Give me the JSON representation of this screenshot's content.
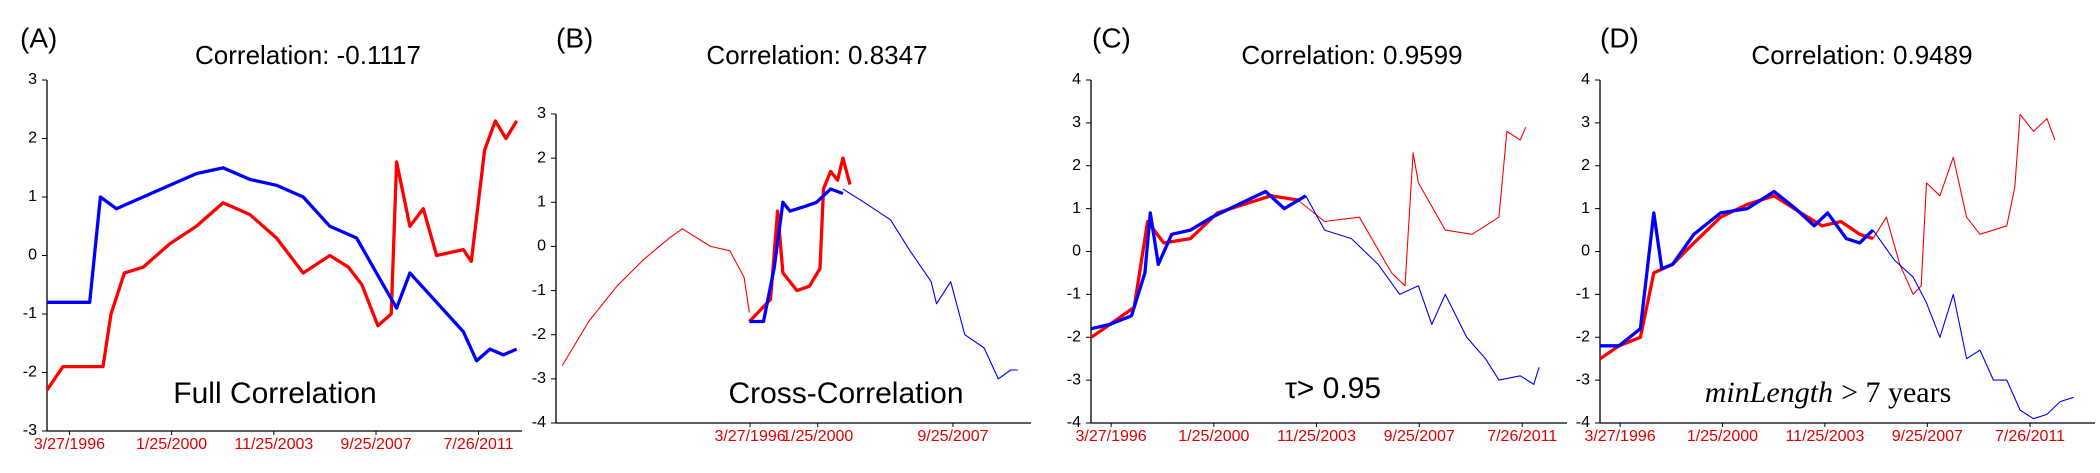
{
  "chart_data": [
    {
      "type": "line",
      "panel": "(A)",
      "title": "Correlation: -0.1117",
      "annotation": [
        {
          "text": "Full Correlation"
        }
      ],
      "xlim": [
        1995.4,
        2013.2
      ],
      "ylim": [
        -3,
        3
      ],
      "yticks": [
        -3,
        -2,
        -1,
        0,
        1,
        2,
        3
      ],
      "xticks": [
        {
          "value": 1996.24,
          "label": "3/27/1996"
        },
        {
          "value": 2000.07,
          "label": "1/25/2000"
        },
        {
          "value": 2003.9,
          "label": "11/25/2003"
        },
        {
          "value": 2007.73,
          "label": "9/25/2007"
        },
        {
          "value": 2011.57,
          "label": "7/26/2011"
        }
      ],
      "series": [
        {
          "color": "#ff0000",
          "width": 3,
          "x": [
            1995.4,
            1996,
            1997.5,
            1997.8,
            1998.3,
            1999,
            2000,
            2001,
            2002,
            2003,
            2004,
            2005,
            2006,
            2006.7,
            2007.2,
            2007.8,
            2008.3,
            2008.5,
            2009,
            2009.5,
            2010,
            2011,
            2011.3,
            2011.8,
            2012.2,
            2012.6,
            2013
          ],
          "values": [
            -2.3,
            -1.9,
            -1.9,
            -1.0,
            -0.3,
            -0.2,
            0.2,
            0.5,
            0.9,
            0.7,
            0.3,
            -0.3,
            0.0,
            -0.2,
            -0.5,
            -1.2,
            -1.0,
            1.6,
            0.5,
            0.8,
            0.0,
            0.1,
            -0.1,
            1.8,
            2.3,
            2.0,
            2.3
          ]
        },
        {
          "color": "#0000ff",
          "width": 3,
          "x": [
            1995.4,
            1997,
            1997.4,
            1998,
            1999,
            2000,
            2001,
            2002,
            2003,
            2004,
            2005,
            2006,
            2007,
            2008,
            2008.5,
            2009,
            2010,
            2011,
            2011.5,
            2012,
            2012.5,
            2013
          ],
          "values": [
            -0.8,
            -0.8,
            1.0,
            0.8,
            1.0,
            1.2,
            1.4,
            1.5,
            1.3,
            1.2,
            1.0,
            0.5,
            0.3,
            -0.5,
            -0.9,
            -0.3,
            -0.8,
            -1.3,
            -1.8,
            -1.6,
            -1.7,
            -1.6
          ]
        }
      ]
    },
    {
      "type": "line",
      "panel": "(B)",
      "title": "Correlation: 0.8347",
      "annotation": [
        {
          "text": "Cross-Correlation"
        }
      ],
      "xlim": [
        1985.25,
        2012.15
      ],
      "ylim": [
        -4,
        3
      ],
      "yticks": [
        -4,
        -3,
        -2,
        -1,
        0,
        1,
        2,
        3
      ],
      "xticks": [
        {
          "value": 1996.24,
          "label": "3/27/1996"
        },
        {
          "value": 2000.07,
          "label": "1/25/2000"
        },
        {
          "value": 2007.73,
          "label": "9/25/2007"
        }
      ],
      "series": [
        {
          "color": "#ff0000",
          "width": 1,
          "x": [
            1985.6,
            1987.1,
            1988.7,
            1990.2,
            1991.7,
            1992.4,
            1994.0,
            1995.1,
            1995.9,
            1996.2
          ],
          "values": [
            -2.7,
            -1.7,
            -0.9,
            -0.3,
            0.2,
            0.4,
            0.0,
            -0.1,
            -0.7,
            -1.5
          ]
        },
        {
          "color": "#0000ff",
          "width": 1,
          "x": [
            2001.5,
            2002.7,
            2004.2,
            2005.3,
            2006.5,
            2006.8,
            2007.6,
            2008.4,
            2009.5,
            2010.3,
            2011.0,
            2011.4
          ],
          "values": [
            1.3,
            1.0,
            0.6,
            -0.1,
            -0.8,
            -1.3,
            -0.8,
            -2.0,
            -2.3,
            -3.0,
            -2.8,
            -2.8
          ]
        },
        {
          "color": "#ff0000",
          "width": 3,
          "x": [
            1996.2,
            1997.4,
            1997.8,
            1998.1,
            1998.9,
            1999.6,
            2000.2,
            2000.4,
            2000.8,
            2001.2,
            2001.5,
            2001.9
          ],
          "values": [
            -1.7,
            -1.2,
            0.8,
            -0.6,
            -1.0,
            -0.9,
            -0.5,
            1.3,
            1.7,
            1.5,
            2.0,
            1.4
          ]
        },
        {
          "color": "#0000ff",
          "width": 3,
          "x": [
            1996.2,
            1997.0,
            1997.6,
            1998.1,
            1998.5,
            1999.3,
            2000.0,
            2000.8,
            2001.5
          ],
          "values": [
            -1.7,
            -1.7,
            -0.5,
            1.0,
            0.8,
            0.9,
            1.0,
            1.3,
            1.2
          ]
        }
      ]
    },
    {
      "type": "line",
      "panel": "(C)",
      "title": "Correlation: 0.9599",
      "annotation": [
        {
          "text": "τ> 0.95"
        }
      ],
      "xlim": [
        1995.49,
        2013.24
      ],
      "ylim": [
        -4,
        4
      ],
      "yticks": [
        -4,
        -3,
        -2,
        -1,
        0,
        1,
        2,
        3,
        4
      ],
      "xticks": [
        {
          "value": 1996.24,
          "label": "3/27/1996"
        },
        {
          "value": 2000.07,
          "label": "1/25/2000"
        },
        {
          "value": 2003.9,
          "label": "11/25/2003"
        },
        {
          "value": 2007.73,
          "label": "9/25/2007"
        },
        {
          "value": 2011.57,
          "label": "7/26/2011"
        }
      ],
      "series": [
        {
          "color": "#ff0000",
          "width": 1,
          "x": [
            2003.2,
            2004.2,
            2005.5,
            2006.7,
            2007.2,
            2007.5,
            2007.7,
            2008.7,
            2009.7,
            2010.7,
            2011.0,
            2011.5,
            2011.7
          ],
          "values": [
            1.2,
            0.7,
            0.8,
            -0.5,
            -0.8,
            2.3,
            1.6,
            0.5,
            0.4,
            0.8,
            2.8,
            2.6,
            2.9
          ]
        },
        {
          "color": "#0000ff",
          "width": 1,
          "x": [
            2003.5,
            2004.2,
            2005.2,
            2006.2,
            2007.0,
            2007.7,
            2008.2,
            2008.7,
            2009.5,
            2010.2,
            2010.7,
            2011.5,
            2012.0,
            2012.2
          ],
          "values": [
            1.3,
            0.5,
            0.3,
            -0.3,
            -1.0,
            -0.8,
            -1.7,
            -1.0,
            -2.0,
            -2.5,
            -3.0,
            -2.9,
            -3.1,
            -2.7
          ]
        },
        {
          "color": "#ff0000",
          "width": 3,
          "x": [
            1995.5,
            1996.2,
            1997.1,
            1997.6,
            1998.2,
            1999.2,
            2000.2,
            2001.2,
            2002.2,
            2003.2
          ],
          "values": [
            -2.0,
            -1.7,
            -1.3,
            0.7,
            0.2,
            0.3,
            0.9,
            1.1,
            1.3,
            1.2
          ]
        },
        {
          "color": "#0000ff",
          "width": 3,
          "x": [
            1995.5,
            1996.2,
            1997.0,
            1997.5,
            1997.7,
            1998.0,
            1998.5,
            1999.2,
            2000.0,
            2001.0,
            2002.0,
            2002.7,
            2003.5
          ],
          "values": [
            -1.8,
            -1.7,
            -1.5,
            -0.5,
            0.9,
            -0.3,
            0.4,
            0.5,
            0.8,
            1.1,
            1.4,
            1.0,
            1.3
          ]
        }
      ]
    },
    {
      "type": "line",
      "panel": "(D)",
      "title": "Correlation: 0.9489",
      "annotation": [
        {
          "text": "minLength",
          "italic": true
        },
        {
          "text": "> 7 years"
        }
      ],
      "xlim": [
        1995.49,
        2014.0
      ],
      "ylim": [
        -4,
        4
      ],
      "yticks": [
        -4,
        -3,
        -2,
        -1,
        0,
        1,
        2,
        3,
        4
      ],
      "xticks": [
        {
          "value": 1996.24,
          "label": "3/27/1996"
        },
        {
          "value": 2000.07,
          "label": "1/25/2000"
        },
        {
          "value": 2003.9,
          "label": "11/25/2003"
        },
        {
          "value": 2007.73,
          "label": "9/25/2007"
        },
        {
          "value": 2011.57,
          "label": "7/26/2011"
        }
      ],
      "series": [
        {
          "color": "#ff0000",
          "width": 1,
          "x": [
            2005.7,
            2006.2,
            2006.7,
            2007.2,
            2007.5,
            2007.7,
            2008.2,
            2008.7,
            2009.2,
            2009.7,
            2010.7,
            2011.0,
            2011.2,
            2011.7,
            2012.2,
            2012.5
          ],
          "values": [
            0.3,
            0.8,
            -0.3,
            -1.0,
            -0.8,
            1.6,
            1.3,
            2.2,
            0.8,
            0.4,
            0.6,
            1.5,
            3.2,
            2.8,
            3.1,
            2.6
          ]
        },
        {
          "color": "#0000ff",
          "width": 1,
          "x": [
            2005.7,
            2006.5,
            2007.2,
            2007.7,
            2008.2,
            2008.7,
            2009.2,
            2009.7,
            2010.2,
            2010.7,
            2011.2,
            2011.7,
            2012.2,
            2012.7,
            2013.2
          ],
          "values": [
            0.5,
            -0.2,
            -0.6,
            -1.2,
            -2.0,
            -1.0,
            -2.5,
            -2.3,
            -3.0,
            -3.0,
            -3.7,
            -3.9,
            -3.8,
            -3.5,
            -3.4
          ]
        },
        {
          "color": "#ff0000",
          "width": 3,
          "x": [
            1995.5,
            1996.2,
            1997.0,
            1997.5,
            1998.2,
            1999.0,
            2000.0,
            2001.0,
            2002.0,
            2003.0,
            2003.8,
            2004.5,
            2005.2,
            2005.7
          ],
          "values": [
            -2.5,
            -2.2,
            -2.0,
            -0.5,
            -0.3,
            0.2,
            0.8,
            1.1,
            1.3,
            0.9,
            0.6,
            0.7,
            0.4,
            0.3
          ]
        },
        {
          "color": "#0000ff",
          "width": 3,
          "x": [
            1995.5,
            1996.2,
            1997.0,
            1997.5,
            1997.8,
            1998.2,
            1999.0,
            2000.0,
            2001.0,
            2002.0,
            2002.8,
            2003.5,
            2004.0,
            2004.7,
            2005.2,
            2005.7
          ],
          "values": [
            -2.2,
            -2.2,
            -1.8,
            0.9,
            -0.4,
            -0.3,
            0.4,
            0.9,
            1.0,
            1.4,
            1.0,
            0.6,
            0.9,
            0.3,
            0.2,
            0.5
          ]
        }
      ]
    }
  ]
}
